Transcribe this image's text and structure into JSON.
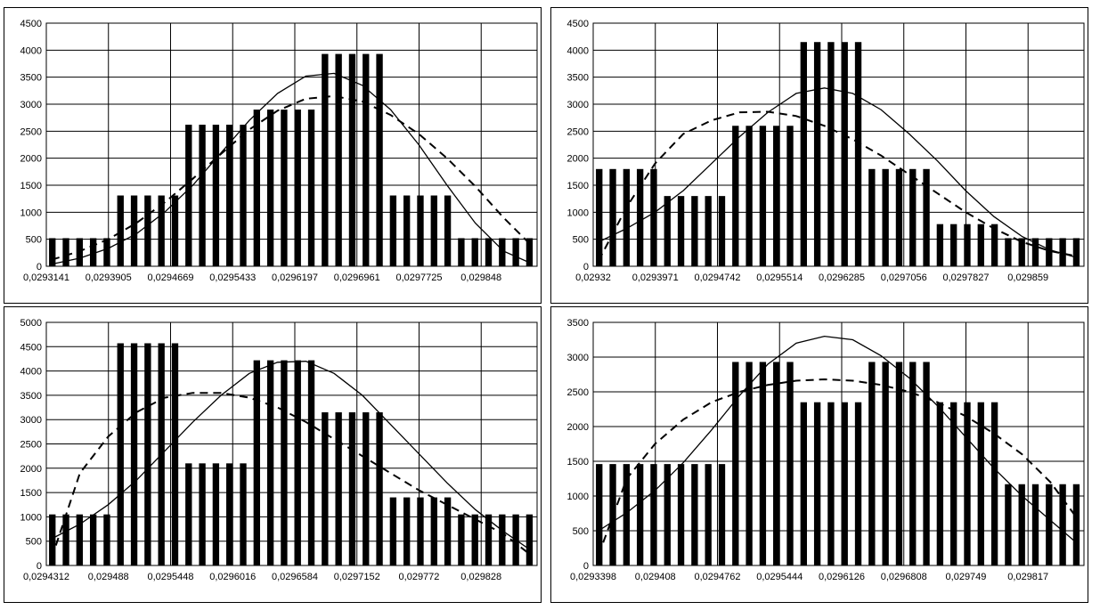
{
  "chart_data": [
    {
      "type": "bar",
      "x_tick_labels": [
        "0,0293141",
        "0,0293905",
        "0,0294669",
        "0,0295433",
        "0,0296197",
        "0,0296961",
        "0,0297725",
        "0,029848"
      ],
      "ylim": [
        0,
        4500
      ],
      "y_ticks": [
        0,
        500,
        1000,
        1500,
        2000,
        2500,
        3000,
        3500,
        4000,
        4500
      ],
      "grid": true,
      "bars": [
        520,
        520,
        520,
        520,
        520,
        1310,
        1310,
        1310,
        1310,
        1310,
        2620,
        2620,
        2620,
        2620,
        2620,
        2900,
        2900,
        2900,
        2900,
        2900,
        3930,
        3930,
        3930,
        3930,
        3930,
        1310,
        1310,
        1310,
        1310,
        1310,
        520,
        520,
        520,
        520,
        520,
        520
      ],
      "series": [
        {
          "style": "solid",
          "values": [
            40,
            150,
            330,
            600,
            1000,
            1500,
            2100,
            2700,
            3200,
            3520,
            3570,
            3350,
            2900,
            2250,
            1500,
            800,
            280,
            50
          ]
        },
        {
          "style": "dashed",
          "values": [
            120,
            280,
            500,
            800,
            1180,
            1620,
            2080,
            2530,
            2880,
            3100,
            3150,
            3050,
            2800,
            2450,
            2000,
            1480,
            900,
            380
          ]
        }
      ]
    },
    {
      "type": "bar",
      "x_tick_labels": [
        "0,02932",
        "0,0293971",
        "0,0294742",
        "0,0295514",
        "0,0296285",
        "0,0297056",
        "0,0297827",
        "0,029859"
      ],
      "ylim": [
        0,
        4500
      ],
      "y_ticks": [
        0,
        500,
        1000,
        1500,
        2000,
        2500,
        3000,
        3500,
        4000,
        4500
      ],
      "grid": true,
      "bars": [
        1800,
        1800,
        1800,
        1800,
        1800,
        1300,
        1300,
        1300,
        1300,
        1300,
        2600,
        2600,
        2600,
        2600,
        2600,
        4150,
        4150,
        4150,
        4150,
        4150,
        1800,
        1800,
        1800,
        1800,
        1800,
        780,
        780,
        780,
        780,
        780,
        520,
        520,
        520,
        520,
        520,
        520
      ],
      "series": [
        {
          "style": "solid",
          "values": [
            450,
            700,
            1000,
            1400,
            1900,
            2400,
            2850,
            3200,
            3300,
            3200,
            2900,
            2450,
            1950,
            1400,
            920,
            550,
            300,
            150
          ]
        },
        {
          "style": "dashed",
          "values": [
            100,
            1100,
            1900,
            2450,
            2700,
            2850,
            2860,
            2780,
            2600,
            2350,
            2050,
            1700,
            1350,
            1000,
            700,
            450,
            280,
            180
          ]
        }
      ]
    },
    {
      "type": "bar",
      "x_tick_labels": [
        "0,0294312",
        "0,029488",
        "0,0295448",
        "0,0296016",
        "0,0296584",
        "0,0297152",
        "0,029772",
        "0,029828"
      ],
      "ylim": [
        0,
        5000
      ],
      "y_ticks": [
        0,
        500,
        1000,
        1500,
        2000,
        2500,
        3000,
        3500,
        4000,
        4500,
        5000
      ],
      "grid": true,
      "bars": [
        1050,
        1050,
        1050,
        1050,
        1050,
        4570,
        4570,
        4570,
        4570,
        4570,
        2100,
        2100,
        2100,
        2100,
        2100,
        4220,
        4220,
        4220,
        4220,
        4220,
        3150,
        3150,
        3150,
        3150,
        3150,
        1400,
        1400,
        1400,
        1400,
        1400,
        1050,
        1050,
        1050,
        1050,
        1050,
        1050
      ],
      "series": [
        {
          "style": "solid",
          "values": [
            550,
            850,
            1250,
            1750,
            2350,
            2950,
            3500,
            3950,
            4180,
            4200,
            3950,
            3500,
            2900,
            2300,
            1700,
            1150,
            700,
            300
          ]
        },
        {
          "style": "dashed",
          "values": [
            150,
            1900,
            2650,
            3150,
            3450,
            3550,
            3550,
            3450,
            3250,
            2950,
            2600,
            2250,
            1900,
            1550,
            1250,
            950,
            650,
            200
          ]
        }
      ]
    },
    {
      "type": "bar",
      "x_tick_labels": [
        "0,0293398",
        "0,029408",
        "0,0294762",
        "0,0295444",
        "0,0296126",
        "0,0296808",
        "0,029749",
        "0,029817"
      ],
      "ylim": [
        0,
        3500
      ],
      "y_ticks": [
        0,
        500,
        1000,
        1500,
        2000,
        2500,
        3000,
        3500
      ],
      "grid": true,
      "bars": [
        1460,
        1460,
        1460,
        1460,
        1460,
        1460,
        1460,
        1460,
        1460,
        1460,
        2930,
        2930,
        2930,
        2930,
        2930,
        2350,
        2350,
        2350,
        2350,
        2350,
        2930,
        2930,
        2930,
        2930,
        2930,
        2350,
        2350,
        2350,
        2350,
        2350,
        1170,
        1170,
        1170,
        1170,
        1170,
        1170
      ],
      "series": [
        {
          "style": "solid",
          "values": [
            500,
            760,
            1080,
            1480,
            1950,
            2450,
            2900,
            3200,
            3300,
            3250,
            3020,
            2700,
            2300,
            1850,
            1400,
            1000,
            650,
            300
          ]
        },
        {
          "style": "dashed",
          "values": [
            150,
            1250,
            1750,
            2100,
            2350,
            2500,
            2600,
            2660,
            2680,
            2660,
            2600,
            2500,
            2350,
            2150,
            1900,
            1600,
            1200,
            650
          ]
        }
      ]
    }
  ]
}
